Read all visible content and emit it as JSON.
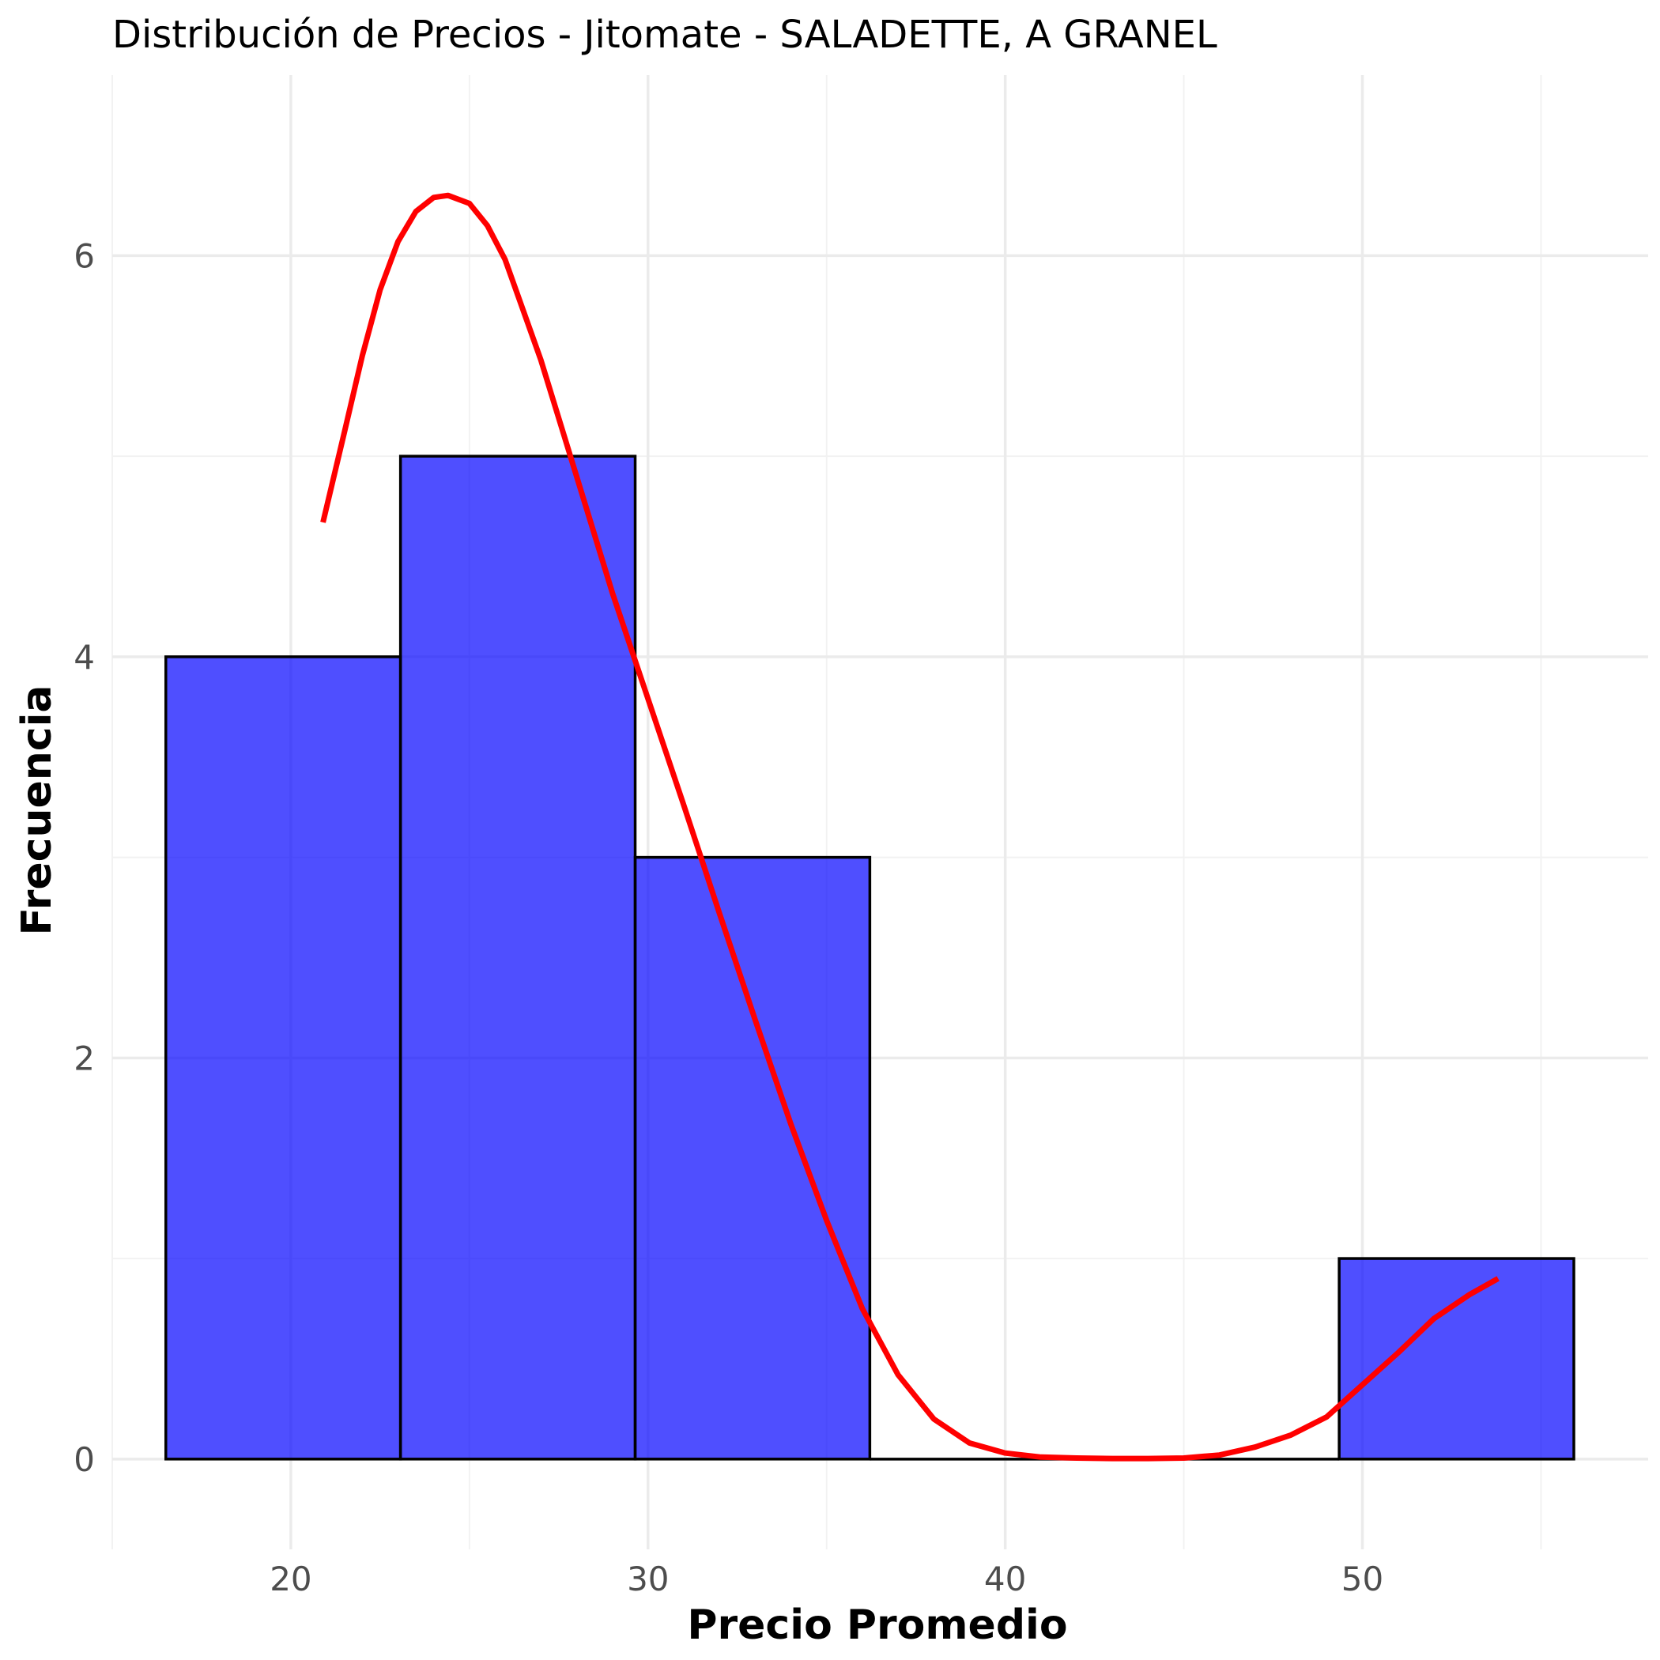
{
  "chart_data": {
    "type": "bar",
    "subtype": "histogram",
    "title": "Distribución de Precios - Jitomate - SALADETTE, A GRANEL",
    "xlabel": "Precio Promedio",
    "ylabel": "Frecuencia",
    "xlim": [
      15,
      58
    ],
    "ylim": [
      -0.45,
      6.9
    ],
    "x_ticks": [
      {
        "value": 20,
        "label": "20"
      },
      {
        "value": 30,
        "label": "30"
      },
      {
        "value": 40,
        "label": "40"
      },
      {
        "value": 50,
        "label": "50"
      }
    ],
    "y_ticks": [
      {
        "value": 0,
        "label": "0"
      },
      {
        "value": 2,
        "label": "2"
      },
      {
        "value": 4,
        "label": "4"
      },
      {
        "value": 6,
        "label": "6"
      }
    ],
    "grid": true,
    "bins": [
      {
        "x0": 16.5,
        "x1": 23.07,
        "count": 4
      },
      {
        "x0": 23.07,
        "x1": 29.64,
        "count": 5
      },
      {
        "x0": 29.64,
        "x1": 36.21,
        "count": 3
      },
      {
        "x0": 36.21,
        "x1": 42.78,
        "count": 0
      },
      {
        "x0": 42.78,
        "x1": 49.35,
        "count": 0
      },
      {
        "x0": 49.35,
        "x1": 55.92,
        "count": 1
      }
    ],
    "density_curve": {
      "color": "#ff0000",
      "x": [
        20.9,
        21.5,
        22.0,
        22.5,
        23.0,
        23.5,
        24.0,
        24.4,
        25.0,
        25.5,
        26.0,
        27.0,
        28.0,
        29.0,
        30.0,
        31.0,
        32.0,
        33.0,
        34.0,
        35.0,
        36.0,
        37.0,
        38.0,
        39.0,
        40.0,
        41.0,
        42.0,
        43.0,
        44.0,
        45.0,
        46.0,
        47.0,
        48.0,
        49.0,
        50.0,
        51.0,
        52.0,
        53.0,
        53.8
      ],
      "y": [
        4.67,
        5.12,
        5.5,
        5.83,
        6.07,
        6.22,
        6.29,
        6.3,
        6.26,
        6.15,
        5.98,
        5.48,
        4.9,
        4.32,
        3.79,
        3.26,
        2.72,
        2.19,
        1.67,
        1.19,
        0.75,
        0.42,
        0.2,
        0.08,
        0.03,
        0.01,
        0.005,
        0.003,
        0.003,
        0.005,
        0.02,
        0.06,
        0.12,
        0.21,
        0.37,
        0.53,
        0.7,
        0.82,
        0.9
      ]
    },
    "colors": {
      "bar_fill": "#0000ff",
      "bar_edge": "#000000",
      "curve": "#ff0000"
    }
  }
}
